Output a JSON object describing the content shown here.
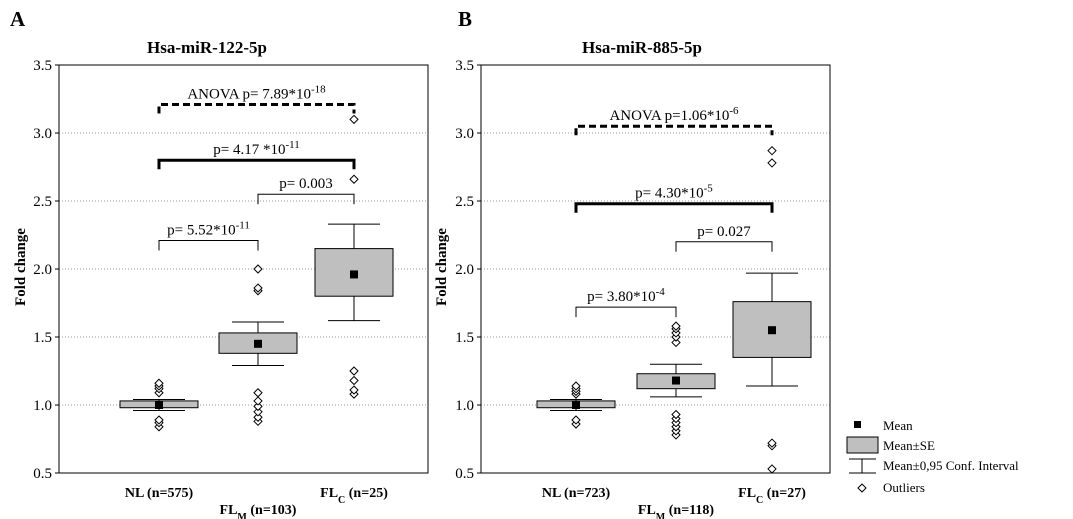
{
  "legend": {
    "position": "bottom-right",
    "items": [
      {
        "label": "Mean",
        "icon": "mean-square-icon"
      },
      {
        "label": "Mean±SE",
        "icon": "se-box-icon"
      },
      {
        "label": "Mean±0,95 Conf. Interval",
        "icon": "ci-whisker-icon"
      },
      {
        "label": "Outliers",
        "icon": "outlier-diamond-icon"
      }
    ]
  },
  "chart_data": [
    {
      "type": "box",
      "panel": "A",
      "title": "Hsa-miR-122-5p",
      "ylabel": "Fold change",
      "ylim": [
        0.5,
        3.5
      ],
      "yticks": [
        "0.5",
        "1.0",
        "1.5",
        "2.0",
        "2.5",
        "3.0",
        "3.5"
      ],
      "grid": true,
      "categories": [
        {
          "label": "NL (n=575)",
          "parts": [
            {
              "t": "NL (n=575)",
              "sub": ""
            }
          ],
          "row": 1
        },
        {
          "label": "FLM (n=103)",
          "parts": [
            {
              "t": "FL",
              "sub": "M"
            },
            {
              "t": " (n=103)",
              "sub": ""
            }
          ],
          "row": 2
        },
        {
          "label": "FLC (n=25)",
          "parts": [
            {
              "t": "FL",
              "sub": "C"
            },
            {
              "t": " (n=25)",
              "sub": ""
            }
          ],
          "row": 1
        }
      ],
      "groups": [
        {
          "mean": 1.0,
          "se": [
            0.98,
            1.03
          ],
          "ci": [
            0.96,
            1.04
          ],
          "outliers": [
            0.84,
            0.87,
            0.89,
            1.09,
            1.12,
            1.14,
            1.16
          ]
        },
        {
          "mean": 1.45,
          "se": [
            1.38,
            1.53
          ],
          "ci": [
            1.29,
            1.61
          ],
          "outliers": [
            0.88,
            0.91,
            0.95,
            0.99,
            1.03,
            1.09,
            1.84,
            1.86,
            2.0
          ]
        },
        {
          "mean": 1.96,
          "se": [
            1.8,
            2.15
          ],
          "ci": [
            1.62,
            2.33
          ],
          "outliers": [
            1.08,
            1.11,
            1.18,
            1.25,
            2.66,
            3.1
          ]
        }
      ],
      "brackets": [
        {
          "from": 0,
          "to": 2,
          "y": 3.21,
          "style": "dashed",
          "text": "ANOVA p= 7.89*10",
          "exp": "-18"
        },
        {
          "from": 0,
          "to": 2,
          "y": 2.8,
          "style": "thick",
          "text": "p= 4.17 *10",
          "exp": "-11"
        },
        {
          "from": 1,
          "to": 2,
          "y": 2.55,
          "style": "thin",
          "text": "p= 0.003",
          "exp": ""
        },
        {
          "from": 0,
          "to": 1,
          "y": 2.21,
          "style": "thin",
          "text": "p= 5.52*10",
          "exp": "-11"
        }
      ]
    },
    {
      "type": "box",
      "panel": "B",
      "title": "Hsa-miR-885-5p",
      "ylabel": "Fold change",
      "ylim": [
        0.5,
        3.5
      ],
      "yticks": [
        "0.5",
        "1.0",
        "1.5",
        "2.0",
        "2.5",
        "3.0",
        "3.5"
      ],
      "grid": true,
      "categories": [
        {
          "label": "NL (n=723)",
          "parts": [
            {
              "t": "NL (n=723)",
              "sub": ""
            }
          ],
          "row": 1
        },
        {
          "label": "FLM (n=118)",
          "parts": [
            {
              "t": "FL",
              "sub": "M"
            },
            {
              "t": " (n=118)",
              "sub": ""
            }
          ],
          "row": 2
        },
        {
          "label": "FLC (n=27)",
          "parts": [
            {
              "t": "FL",
              "sub": "C"
            },
            {
              "t": " (n=27)",
              "sub": ""
            }
          ],
          "row": 1
        }
      ],
      "groups": [
        {
          "mean": 1.0,
          "se": [
            0.98,
            1.03
          ],
          "ci": [
            0.96,
            1.04
          ],
          "outliers": [
            0.86,
            0.89,
            1.08,
            1.1,
            1.12,
            1.14
          ]
        },
        {
          "mean": 1.18,
          "se": [
            1.12,
            1.23
          ],
          "ci": [
            1.06,
            1.3
          ],
          "outliers": [
            0.78,
            0.81,
            0.84,
            0.87,
            0.9,
            0.93,
            1.46,
            1.5,
            1.53,
            1.56,
            1.58
          ]
        },
        {
          "mean": 1.55,
          "se": [
            1.35,
            1.76
          ],
          "ci": [
            1.14,
            1.97
          ],
          "outliers": [
            0.53,
            0.7,
            0.72,
            2.78,
            2.87
          ]
        }
      ],
      "brackets": [
        {
          "from": 0,
          "to": 2,
          "y": 3.05,
          "style": "dashed",
          "text": "ANOVA p=1.06*10",
          "exp": "-6"
        },
        {
          "from": 0,
          "to": 2,
          "y": 2.48,
          "style": "thick",
          "text": "p= 4.30*10",
          "exp": "-5"
        },
        {
          "from": 1,
          "to": 2,
          "y": 2.2,
          "style": "thin",
          "text": "p= 0.027",
          "exp": ""
        },
        {
          "from": 0,
          "to": 1,
          "y": 1.72,
          "style": "thin",
          "text": "p= 3.80*10",
          "exp": "-4"
        }
      ]
    }
  ]
}
